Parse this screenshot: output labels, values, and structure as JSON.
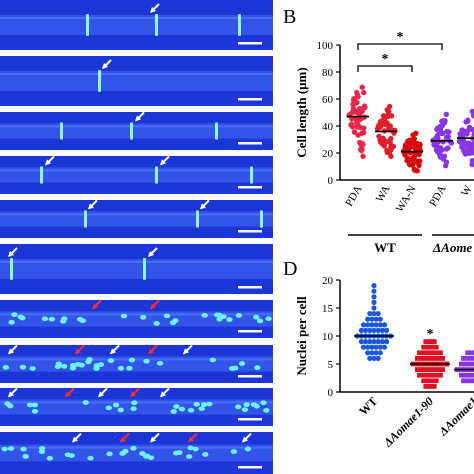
{
  "panels": {
    "b_letter": "B",
    "d_letter": "D"
  },
  "micrographs": {
    "rows": [
      {
        "arrows": [
          {
            "x": 150,
            "color": "white"
          }
        ],
        "septa": [
          86,
          155,
          238
        ]
      },
      {
        "arrows": [
          {
            "x": 102,
            "color": "white"
          }
        ],
        "septa": [
          98
        ]
      },
      {
        "arrows": [
          {
            "x": 135,
            "color": "white"
          }
        ],
        "septa": [
          60,
          130,
          215
        ]
      },
      {
        "arrows": [
          {
            "x": 45,
            "color": "white"
          },
          {
            "x": 160,
            "color": "white"
          }
        ],
        "septa": [
          40,
          155,
          250
        ]
      },
      {
        "arrows": [
          {
            "x": 88,
            "color": "white"
          },
          {
            "x": 200,
            "color": "white"
          }
        ],
        "septa": [
          84,
          196,
          260
        ]
      },
      {
        "arrows": [
          {
            "x": 8,
            "color": "white"
          },
          {
            "x": 148,
            "color": "white"
          }
        ],
        "septa": [
          10,
          143
        ]
      },
      {
        "arrows": [
          {
            "x": 92,
            "color": "red"
          },
          {
            "x": 150,
            "color": "red"
          }
        ],
        "septa": []
      },
      {
        "arrows": [
          {
            "x": 8,
            "color": "white"
          },
          {
            "x": 75,
            "color": "red"
          },
          {
            "x": 110,
            "color": "white"
          },
          {
            "x": 148,
            "color": "red"
          },
          {
            "x": 183,
            "color": "white"
          }
        ],
        "septa": []
      },
      {
        "arrows": [
          {
            "x": 8,
            "color": "white"
          },
          {
            "x": 65,
            "color": "red"
          },
          {
            "x": 98,
            "color": "white"
          },
          {
            "x": 130,
            "color": "red"
          },
          {
            "x": 160,
            "color": "white"
          }
        ],
        "septa": []
      },
      {
        "arrows": [
          {
            "x": 72,
            "color": "white"
          },
          {
            "x": 120,
            "color": "red"
          },
          {
            "x": 150,
            "color": "white"
          },
          {
            "x": 188,
            "color": "red"
          },
          {
            "x": 242,
            "color": "white"
          }
        ],
        "septa": []
      }
    ]
  },
  "chart_data": [
    {
      "panel": "B",
      "type": "scatter",
      "ylabel": "Cell length (μm)",
      "ylim": [
        0,
        100
      ],
      "yticks": [
        0,
        20,
        40,
        60,
        80,
        100
      ],
      "categories": [
        "PDA",
        "WA",
        "WA-N",
        "PDA",
        "W"
      ],
      "groups": [
        "WT",
        "ΔAome"
      ],
      "colors": [
        "#e8284a",
        "#e01f2c",
        "#d80a0a",
        "#8a36e0",
        "#8a36e0"
      ],
      "medians": [
        47,
        36,
        21,
        29,
        31
      ],
      "significance": [
        "*",
        "*"
      ]
    },
    {
      "panel": "D",
      "type": "scatter",
      "ylabel": "Nuclei per cell",
      "ylim": [
        0,
        20
      ],
      "yticks": [
        0,
        5,
        10,
        15,
        20
      ],
      "categories": [
        "WT",
        "ΔAomae1-90",
        "ΔAomae1"
      ],
      "colors": [
        "#1a56e0",
        "#e01020",
        "#8a36e0"
      ],
      "medians": [
        10,
        5,
        4
      ],
      "significance": [
        "*"
      ]
    }
  ]
}
